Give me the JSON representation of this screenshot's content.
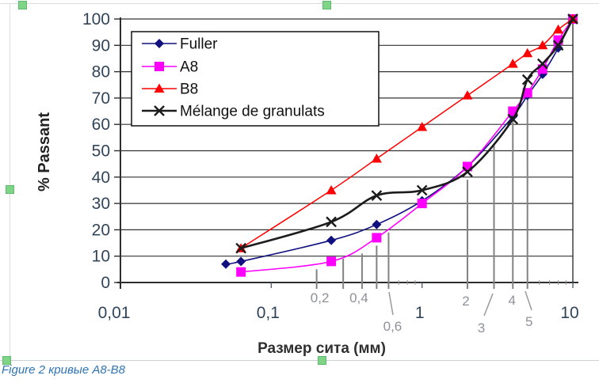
{
  "figure": {
    "caption": "Figure 2 кривые A8-B8"
  },
  "styles": {
    "grid_color": "#333333",
    "axis_color": "#2e2e2e",
    "drop_line_color": "#828282",
    "leader_color": "#9a9a9a",
    "tick_label_color": "#31445a",
    "annotation_color": "#8d9199",
    "axis_title_color": "#2f2f2f",
    "legend_border_color": "#111111",
    "caption_color": "#2E74B5",
    "handle_color": "#7ed487"
  },
  "chart_data": {
    "type": "line",
    "x_scale": "log",
    "x_range": [
      0.01,
      10
    ],
    "y_range": [
      0,
      100
    ],
    "grid": "horizontal",
    "legend_position": "top-left-inside",
    "y_axis": {
      "title": "% Passant",
      "min": 0,
      "max": 100,
      "step": 10,
      "tick_labels": [
        "0",
        "10",
        "20",
        "30",
        "40",
        "50",
        "60",
        "70",
        "80",
        "90",
        "100"
      ]
    },
    "x_axis": {
      "title": "Размер сита (мм)",
      "major_ticks": [
        {
          "label": "0,01",
          "value": 0.01,
          "dx": -8
        },
        {
          "label": "0,1",
          "value": 0.1,
          "dx": -4
        },
        {
          "label": "1",
          "value": 1,
          "dx": -3
        },
        {
          "label": "10",
          "value": 10,
          "dx": -4
        }
      ],
      "annotations": [
        {
          "label": "0,2",
          "value": 0.2,
          "dx": 4,
          "y": 382,
          "leader": null
        },
        {
          "label": "0,4",
          "value": 0.4,
          "dx": -4,
          "y": 382,
          "leader": null
        },
        {
          "label": "0,6",
          "value": 0.6,
          "dx": 5,
          "y": 418,
          "leader": [
            [
              491,
              369
            ],
            [
              496,
              398
            ]
          ]
        },
        {
          "label": "2",
          "value": 2,
          "dx": -2,
          "y": 386,
          "leader": null
        },
        {
          "label": "3",
          "value": 3,
          "dx": -16,
          "y": 420,
          "leader": [
            [
              611,
              399
            ],
            [
              622,
              371
            ]
          ]
        },
        {
          "label": "4",
          "value": 4,
          "dx": -1,
          "y": 385,
          "leader": null
        },
        {
          "label": "5",
          "value": 5,
          "dx": 2,
          "y": 412,
          "leader": [
            [
              663,
              368
            ],
            [
              671,
              392
            ]
          ]
        }
      ]
    },
    "drop_lines": [
      {
        "x": 0.2,
        "top": 5
      },
      {
        "x": 0.3,
        "top": 9
      },
      {
        "x": 0.4,
        "top": 11
      },
      {
        "x": 0.5,
        "top": 14
      },
      {
        "x": 0.6,
        "top": 19
      },
      {
        "x": 2,
        "top": 39
      },
      {
        "x": 3,
        "top": 52
      },
      {
        "x": 4,
        "top": 62
      },
      {
        "x": 5,
        "top": 70
      }
    ],
    "series": [
      {
        "name": "Fuller",
        "slug": "fuller",
        "color": "#10107e",
        "marker": "diamond",
        "line_width": 1.6,
        "points": [
          [
            0.05,
            7
          ],
          [
            0.063,
            8
          ],
          [
            0.25,
            16
          ],
          [
            0.5,
            22
          ],
          [
            1,
            31
          ],
          [
            2,
            44
          ],
          [
            4,
            63
          ],
          [
            5,
            71
          ],
          [
            6.3,
            79
          ],
          [
            8,
            89
          ],
          [
            10,
            100
          ]
        ]
      },
      {
        "name": "A8",
        "slug": "a8",
        "color": "#ff00ff",
        "marker": "square",
        "line_width": 1.6,
        "points": [
          [
            0.063,
            4
          ],
          [
            0.25,
            8
          ],
          [
            0.5,
            17
          ],
          [
            1,
            30
          ],
          [
            2,
            44
          ],
          [
            4,
            65
          ],
          [
            5,
            72
          ],
          [
            6.3,
            81
          ],
          [
            8,
            92
          ],
          [
            10,
            100
          ]
        ]
      },
      {
        "name": "B8",
        "slug": "b8",
        "color": "#ff0000",
        "marker": "triangle",
        "line_width": 1.5,
        "points": [
          [
            0.063,
            13
          ],
          [
            0.25,
            35
          ],
          [
            0.5,
            47
          ],
          [
            1,
            59
          ],
          [
            2,
            71
          ],
          [
            4,
            83
          ],
          [
            5,
            87
          ],
          [
            6.3,
            90
          ],
          [
            8,
            96
          ],
          [
            10,
            100
          ]
        ]
      },
      {
        "name": "Mélange de granulats",
        "slug": "melange-de-granulats",
        "color": "#1c1c1c",
        "marker": "x",
        "line_width": 2.6,
        "points": [
          [
            0.063,
            13
          ],
          [
            0.25,
            23
          ],
          [
            0.5,
            33
          ],
          [
            1,
            35
          ],
          [
            2,
            42
          ],
          [
            4,
            62
          ],
          [
            5,
            77
          ],
          [
            6.3,
            83
          ],
          [
            8,
            90
          ],
          [
            10,
            100
          ]
        ]
      }
    ]
  }
}
